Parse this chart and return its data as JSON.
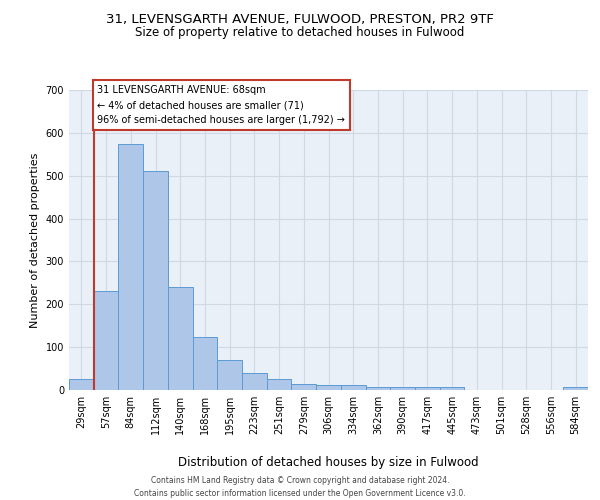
{
  "title1": "31, LEVENSGARTH AVENUE, FULWOOD, PRESTON, PR2 9TF",
  "title2": "Size of property relative to detached houses in Fulwood",
  "xlabel": "Distribution of detached houses by size in Fulwood",
  "ylabel": "Number of detached properties",
  "bins": [
    "29sqm",
    "57sqm",
    "84sqm",
    "112sqm",
    "140sqm",
    "168sqm",
    "195sqm",
    "223sqm",
    "251sqm",
    "279sqm",
    "306sqm",
    "334sqm",
    "362sqm",
    "390sqm",
    "417sqm",
    "445sqm",
    "473sqm",
    "501sqm",
    "528sqm",
    "556sqm",
    "584sqm"
  ],
  "values": [
    26,
    230,
    575,
    510,
    240,
    123,
    71,
    40,
    26,
    15,
    11,
    11,
    7,
    6,
    6,
    6,
    0,
    0,
    0,
    0,
    6
  ],
  "bar_color": "#aec6e8",
  "bar_edge_color": "#5b9bd5",
  "grid_color": "#d0d8e4",
  "vline_index": 1,
  "vline_color": "#c0392b",
  "annotation_text": "31 LEVENSGARTH AVENUE: 68sqm\n← 4% of detached houses are smaller (71)\n96% of semi-detached houses are larger (1,792) →",
  "annotation_box_facecolor": "#ffffff",
  "annotation_box_edgecolor": "#c0392b",
  "footer": "Contains HM Land Registry data © Crown copyright and database right 2024.\nContains public sector information licensed under the Open Government Licence v3.0.",
  "ylim": [
    0,
    700
  ],
  "bg_color": "#eaf0f8",
  "title1_fontsize": 9.5,
  "title2_fontsize": 8.5,
  "xlabel_fontsize": 8.5,
  "ylabel_fontsize": 8,
  "tick_fontsize": 7,
  "annot_fontsize": 7,
  "footer_fontsize": 5.5
}
